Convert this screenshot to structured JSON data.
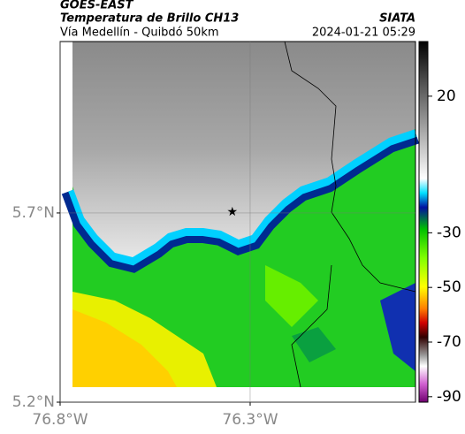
{
  "header": {
    "title": "GOES-EAST",
    "subtitle": "Temperatura de Brillo CH13",
    "source": "SIATA",
    "route": "Vía Medellín - Quibdó 50km",
    "datetime": "2024-01-21 05:29"
  },
  "map": {
    "lonlim": [
      -76.8,
      -75.865
    ],
    "latlim": [
      5.2,
      6.153
    ],
    "lon_ticks": [
      {
        "value": -76.8,
        "label": "76.8°W"
      },
      {
        "value": -76.3,
        "label": "76.3°W"
      }
    ],
    "lat_ticks": [
      {
        "value": 5.7,
        "label": "5.7°N"
      },
      {
        "value": 5.2,
        "label": "5.2°N"
      }
    ],
    "marker": {
      "lon": -76.347,
      "lat": 5.702
    }
  },
  "colorbar": {
    "lim": [
      -92,
      40
    ],
    "ticks": [
      20,
      -30,
      -50,
      -70,
      -90
    ]
  }
}
